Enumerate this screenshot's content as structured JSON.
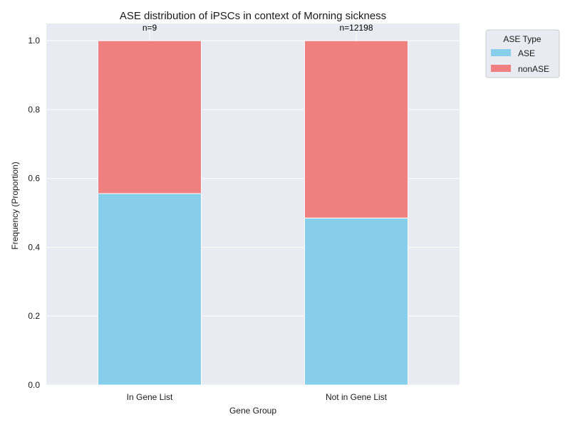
{
  "chart_data": {
    "type": "bar",
    "stacked": true,
    "title": "ASE distribution of iPSCs in context of Morning sickness",
    "xlabel": "Gene Group",
    "ylabel": "Frequency (Proportion)",
    "categories": [
      "In Gene List",
      "Not in Gene List"
    ],
    "series": [
      {
        "name": "ASE",
        "color": "#87CEEB",
        "values": [
          0.556,
          0.485
        ]
      },
      {
        "name": "nonASE",
        "color": "#F08080",
        "values": [
          0.444,
          0.515
        ]
      }
    ],
    "annotations": [
      "n=9",
      "n=12198"
    ],
    "ylim": [
      0,
      1.05
    ],
    "yticks": [
      0.0,
      0.2,
      0.4,
      0.6,
      0.8,
      1.0
    ],
    "ytick_labels": [
      "0.0",
      "0.2",
      "0.4",
      "0.6",
      "0.8",
      "1.0"
    ],
    "grid": true,
    "legend": {
      "title": "ASE Type",
      "placement": "outside-top-right"
    },
    "background_color": "#EAEAF2"
  }
}
